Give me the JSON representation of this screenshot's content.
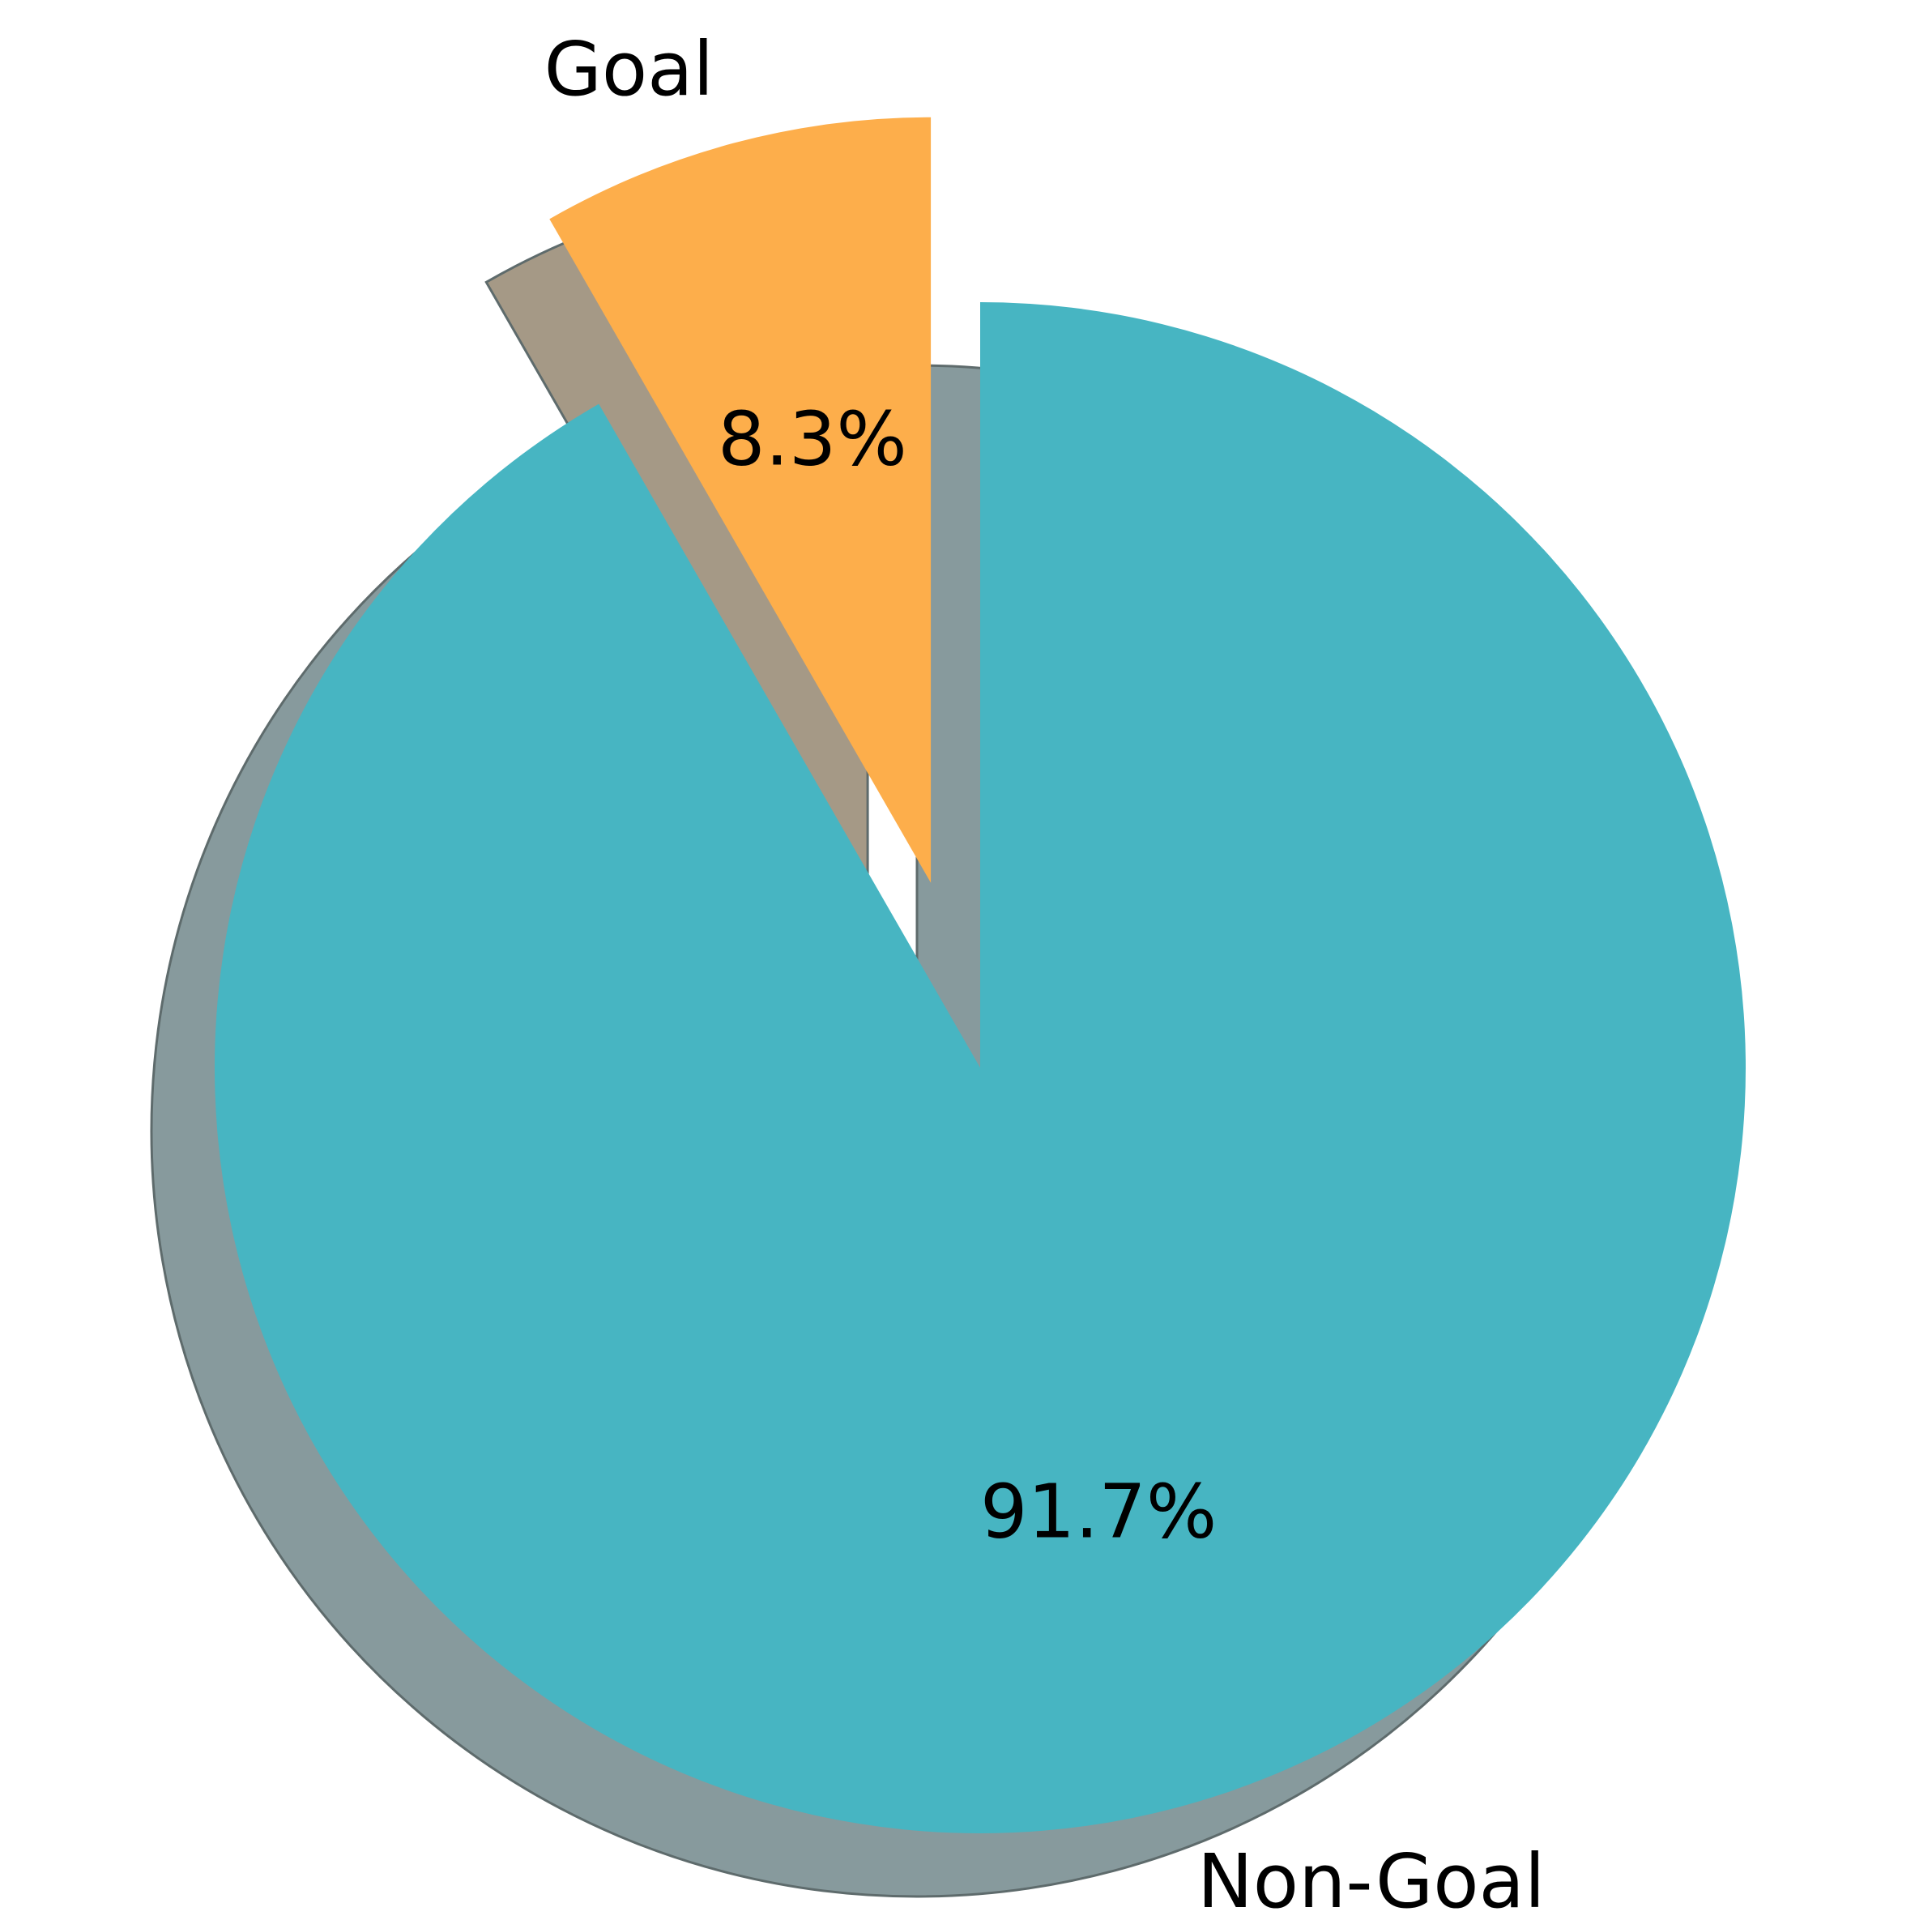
{
  "chart_data": {
    "type": "pie",
    "title": "",
    "start_angle_deg": 90,
    "counterclockwise": true,
    "shadow": true,
    "slices": [
      {
        "label": "Goal",
        "percent_label": "8.3%",
        "value": 8.3,
        "color": "#FDAE4B",
        "exploded": true
      },
      {
        "label": "Non-Goal",
        "percent_label": "91.7%",
        "value": 91.7,
        "color": "#47B5C2",
        "exploded": false
      }
    ]
  },
  "colors": {
    "background": "#FFFFFF",
    "shadow_goal": "#A59986",
    "shadow_nongoal": "#879A9D",
    "shadow_edge": "#5E6B6C"
  }
}
